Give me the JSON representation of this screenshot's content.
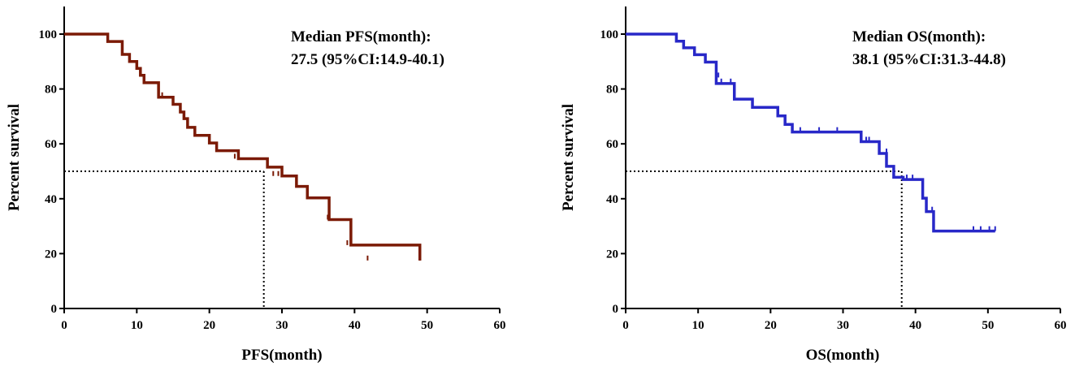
{
  "chart_data": [
    {
      "type": "line",
      "step": true,
      "color": "#7b1a05",
      "xlabel": "PFS(month)",
      "ylabel": "Percent survival",
      "xlim": [
        0,
        60
      ],
      "ylim": [
        0,
        100
      ],
      "xticks": [
        0,
        10,
        20,
        30,
        40,
        50,
        60
      ],
      "yticks": [
        0,
        20,
        40,
        60,
        80,
        100
      ],
      "annotation": {
        "line1": "Median PFS(month):",
        "line2": "27.5 (95%CI:14.9-40.1)"
      },
      "median": 27.5,
      "median_survival": 50,
      "series": [
        {
          "x": [
            0,
            6,
            8,
            9,
            10,
            10.5,
            11,
            13,
            15,
            16,
            16.5,
            17,
            18,
            20,
            21,
            24,
            28,
            30,
            32,
            33.5,
            36.5,
            39.5,
            49
          ],
          "y": [
            100,
            97.3,
            92.6,
            90,
            87.5,
            85,
            82.3,
            77,
            74.4,
            71.6,
            69.2,
            66,
            63.1,
            60.3,
            57.5,
            54.6,
            51.5,
            48.3,
            44.5,
            40.3,
            32.4,
            23.1,
            17.5
          ]
        }
      ],
      "censor_marks": [
        {
          "x": 8,
          "y": 95.9
        },
        {
          "x": 13.5,
          "y": 77.0
        },
        {
          "x": 23.5,
          "y": 54.6
        },
        {
          "x": 28.8,
          "y": 48.3
        },
        {
          "x": 29.5,
          "y": 48.3
        },
        {
          "x": 36.3,
          "y": 32.4
        },
        {
          "x": 39.0,
          "y": 23.1
        },
        {
          "x": 41.8,
          "y": 17.5
        },
        {
          "x": 49.0,
          "y": 17.5
        }
      ]
    },
    {
      "type": "line",
      "step": true,
      "color": "#2828c8",
      "xlabel": "OS(month)",
      "ylabel": "Percent survival",
      "xlim": [
        0,
        60
      ],
      "ylim": [
        0,
        100
      ],
      "xticks": [
        0,
        10,
        20,
        30,
        40,
        50,
        60
      ],
      "yticks": [
        0,
        20,
        40,
        60,
        80,
        100
      ],
      "annotation": {
        "line1": "Median OS(month):",
        "line2": "38.1 (95%CI:31.3-44.8)"
      },
      "median": 38.1,
      "median_survival": 50,
      "series": [
        {
          "x": [
            0,
            7,
            8,
            9.5,
            11,
            12.5,
            15,
            17.5,
            21,
            22,
            23,
            32.5,
            35,
            36,
            37,
            38.3,
            41,
            41.5,
            42.5,
            51
          ],
          "y": [
            100,
            97.4,
            95,
            92.5,
            89.8,
            82.0,
            76.3,
            73.3,
            70.2,
            67.1,
            64.3,
            60.8,
            56.5,
            51.8,
            47.8,
            47.0,
            40.2,
            35.3,
            28.2,
            28.2
          ]
        }
      ],
      "censor_marks": [
        {
          "x": 12.8,
          "y": 84.2
        },
        {
          "x": 13.2,
          "y": 82.0
        },
        {
          "x": 14.5,
          "y": 82.0
        },
        {
          "x": 24.1,
          "y": 64.3
        },
        {
          "x": 26.7,
          "y": 64.3
        },
        {
          "x": 29.2,
          "y": 64.3
        },
        {
          "x": 33.2,
          "y": 60.8
        },
        {
          "x": 33.6,
          "y": 60.8
        },
        {
          "x": 36.0,
          "y": 56.5
        },
        {
          "x": 38.8,
          "y": 47.0
        },
        {
          "x": 39.6,
          "y": 47.0
        },
        {
          "x": 42.3,
          "y": 35.3
        },
        {
          "x": 48.0,
          "y": 28.2
        },
        {
          "x": 49.0,
          "y": 28.2
        },
        {
          "x": 50.2,
          "y": 28.2
        },
        {
          "x": 51.0,
          "y": 28.2
        }
      ]
    }
  ]
}
